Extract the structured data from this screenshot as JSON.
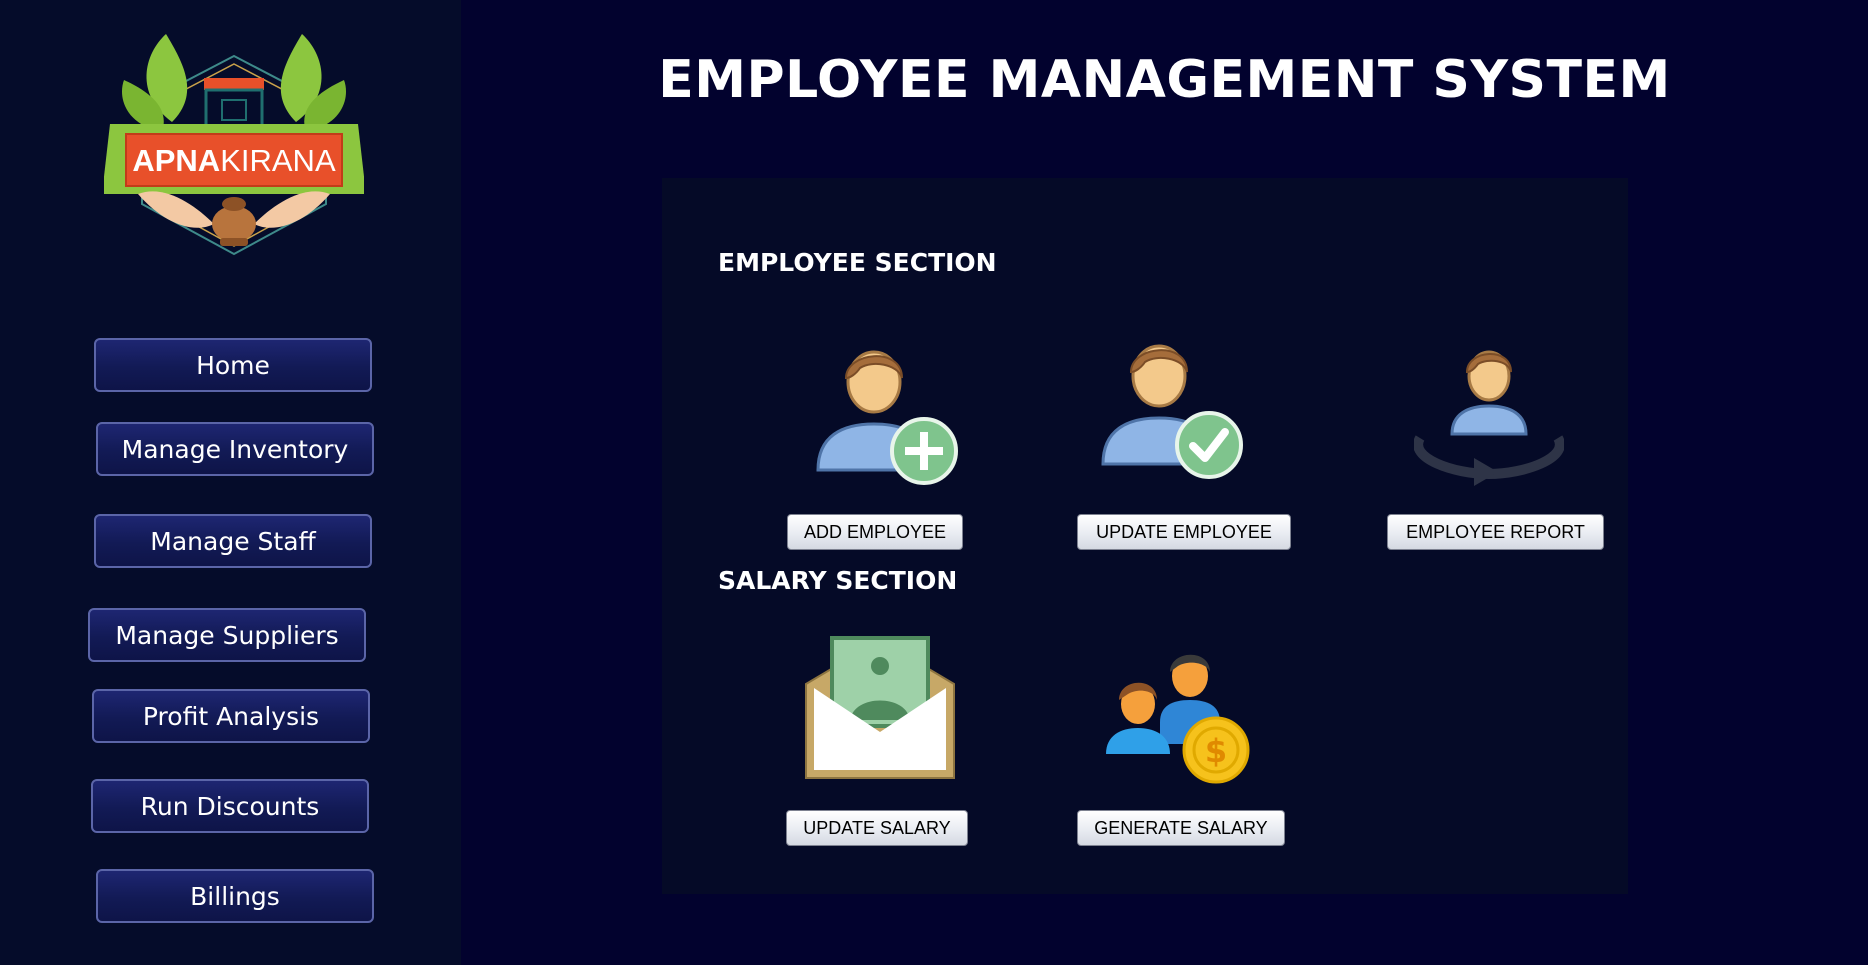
{
  "sidebar": {
    "logo_text_bold": "APNA",
    "logo_text_regular": "KIRANA",
    "nav": [
      {
        "label": "Home"
      },
      {
        "label": "Manage Inventory"
      },
      {
        "label": "Manage Staff"
      },
      {
        "label": "Manage Suppliers"
      },
      {
        "label": "Profit Analysis"
      },
      {
        "label": "Run Discounts"
      },
      {
        "label": "Billings"
      }
    ]
  },
  "header": {
    "title": "EMPLOYEE MANAGEMENT SYSTEM"
  },
  "employee_section": {
    "title": "EMPLOYEE SECTION",
    "actions": [
      {
        "label": "ADD EMPLOYEE",
        "icon": "add-employee-icon"
      },
      {
        "label": "UPDATE EMPLOYEE",
        "icon": "update-employee-icon"
      },
      {
        "label": "EMPLOYEE REPORT",
        "icon": "employee-report-icon"
      }
    ]
  },
  "salary_section": {
    "title": "SALARY SECTION",
    "actions": [
      {
        "label": "UPDATE SALARY",
        "icon": "salary-envelope-icon"
      },
      {
        "label": "GENERATE SALARY",
        "icon": "generate-salary-icon"
      }
    ]
  },
  "colors": {
    "background": "#02022e",
    "sidebar": "#050c2a",
    "panel": "#050a27",
    "nav_button": "#121a55",
    "logo_banner": "#e8502a",
    "logo_leaf": "#8cc63f"
  }
}
